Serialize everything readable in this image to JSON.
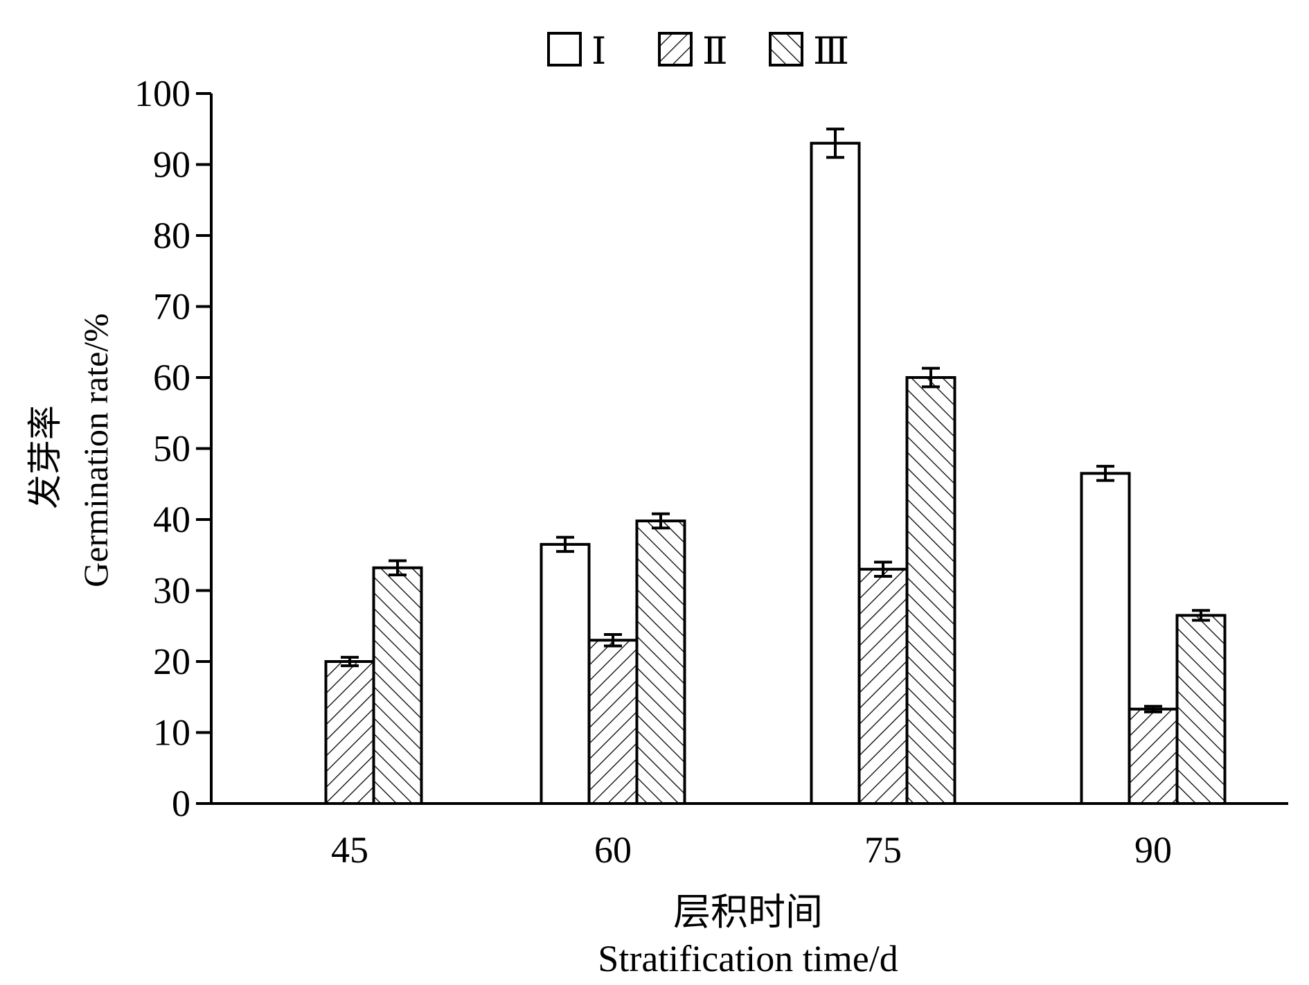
{
  "chart_data": {
    "type": "bar",
    "categories": [
      "45",
      "60",
      "75",
      "90"
    ],
    "series": [
      {
        "name": "Ⅰ",
        "pattern": "none",
        "values": [
          0,
          36.5,
          93.0,
          46.5
        ],
        "errors": [
          0,
          1.0,
          2.0,
          1.0
        ]
      },
      {
        "name": "Ⅱ",
        "pattern": "diag-up",
        "values": [
          20.0,
          23.0,
          33.0,
          13.3
        ],
        "errors": [
          0.6,
          0.8,
          1.0,
          0.4
        ]
      },
      {
        "name": "Ⅲ",
        "pattern": "diag-down",
        "values": [
          33.2,
          39.8,
          60.0,
          26.5
        ],
        "errors": [
          1.0,
          1.0,
          1.3,
          0.7
        ]
      }
    ],
    "ylabel_cn": "发芽率",
    "ylabel": "Germination rate/%",
    "xlabel_cn": "层积时间",
    "xlabel": "Stratification time/d",
    "ylim": [
      0,
      100
    ],
    "yticks": [
      "0",
      "10",
      "20",
      "30",
      "40",
      "50",
      "60",
      "70",
      "80",
      "90",
      "100"
    ],
    "grid": false,
    "legend_position": "top-center",
    "colors": {
      "bar_fill": "#ffffff",
      "stroke": "#000000",
      "hatch": "#000000"
    }
  }
}
